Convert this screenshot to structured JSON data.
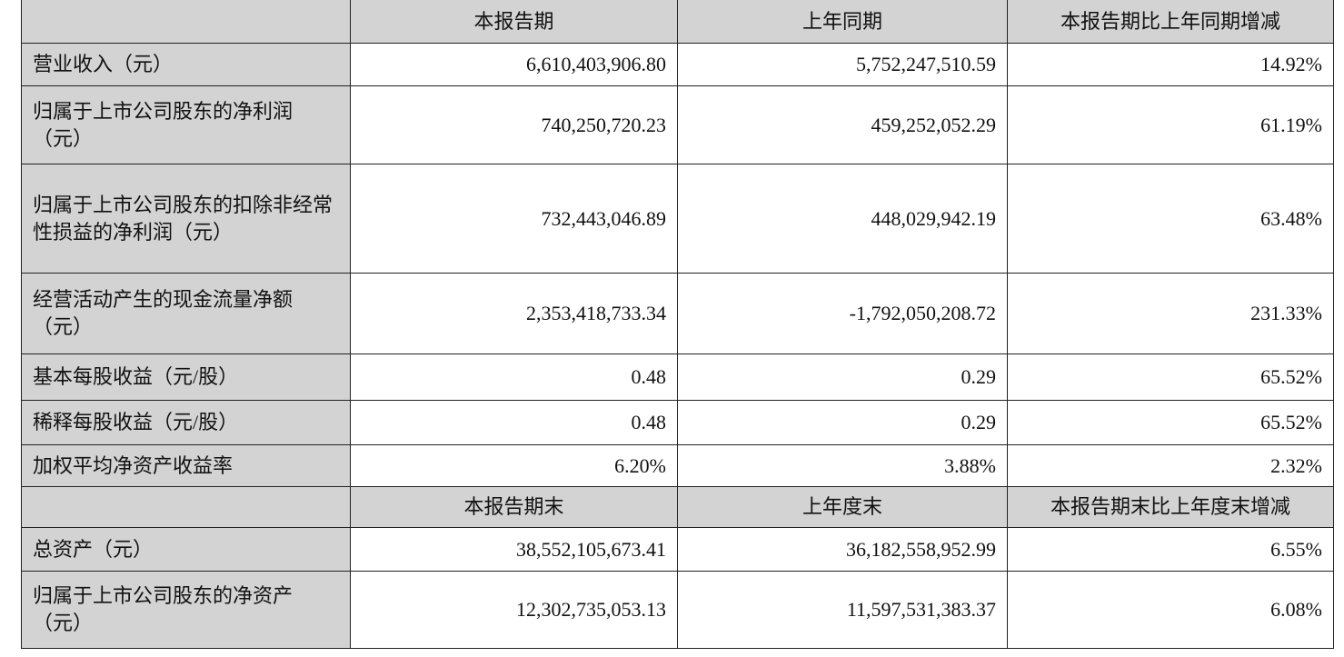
{
  "header1": [
    "",
    "本报告期",
    "上年同期",
    "本报告期比上年同期增减"
  ],
  "rows1": [
    {
      "label": "营业收入（元）",
      "values": [
        "6,610,403,906.80",
        "5,752,247,510.59",
        "14.92%"
      ]
    },
    {
      "label": "归属于上市公司股东的净利润（元）",
      "values": [
        "740,250,720.23",
        "459,252,052.29",
        "61.19%"
      ]
    },
    {
      "label": "归属于上市公司股东的扣除非经常性损益的净利润（元）",
      "values": [
        "732,443,046.89",
        "448,029,942.19",
        "63.48%"
      ]
    },
    {
      "label": "经营活动产生的现金流量净额（元）",
      "values": [
        "2,353,418,733.34",
        "-1,792,050,208.72",
        "231.33%"
      ]
    },
    {
      "label": "基本每股收益（元/股）",
      "values": [
        "0.48",
        "0.29",
        "65.52%"
      ]
    },
    {
      "label": "稀释每股收益（元/股）",
      "values": [
        "0.48",
        "0.29",
        "65.52%"
      ]
    },
    {
      "label": "加权平均净资产收益率",
      "values": [
        "6.20%",
        "3.88%",
        "2.32%"
      ]
    }
  ],
  "header2": [
    "",
    "本报告期末",
    "上年度末",
    "本报告期末比上年度末增减"
  ],
  "rows2": [
    {
      "label": "总资产（元）",
      "values": [
        "38,552,105,673.41",
        "36,182,558,952.99",
        "6.55%"
      ]
    },
    {
      "label": "归属于上市公司股东的净资产（元）",
      "values": [
        "12,302,735,053.13",
        "11,597,531,383.37",
        "6.08%"
      ]
    }
  ]
}
